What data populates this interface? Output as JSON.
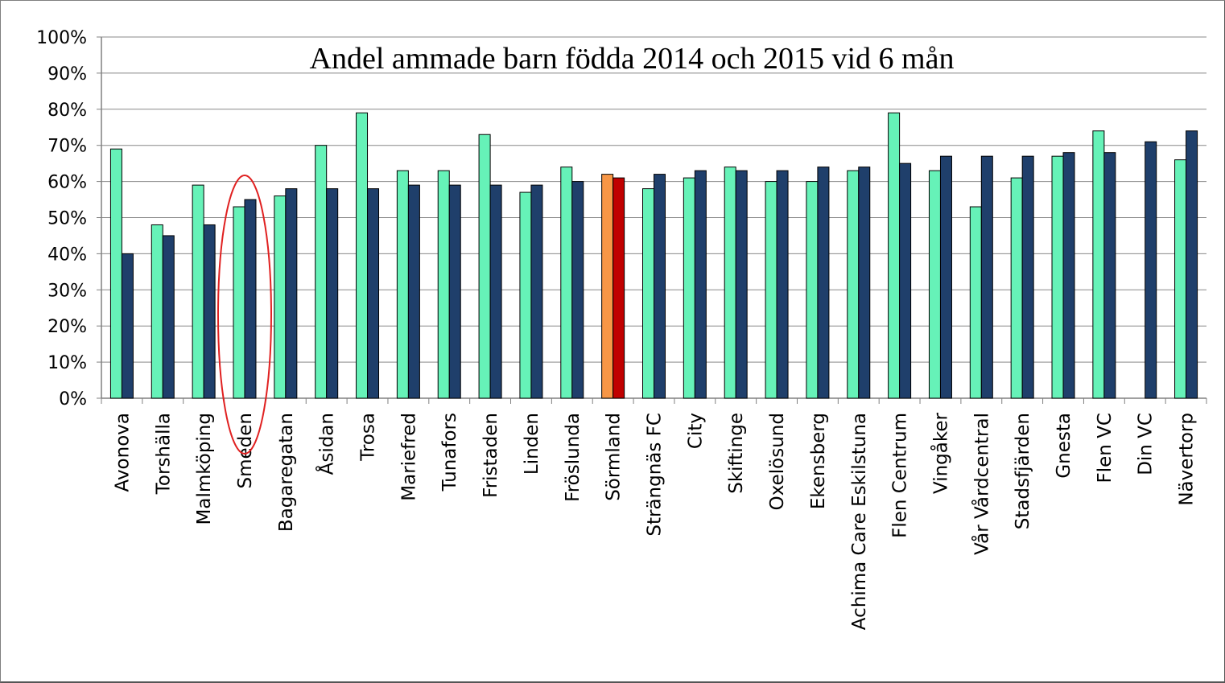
{
  "chart_data": {
    "type": "bar",
    "title": "Andel ammade barn födda 2014 och 2015 vid 6 mån",
    "xlabel": "",
    "ylabel": "",
    "ylim": [
      0,
      1
    ],
    "y_ticks": [
      "0%",
      "10%",
      "20%",
      "30%",
      "40%",
      "50%",
      "60%",
      "70%",
      "80%",
      "90%",
      "100%"
    ],
    "grid": true,
    "legend": "none",
    "categories": [
      "Avonova",
      "Torshälla",
      "Malmköping",
      "Smeden",
      "Bagaregatan",
      "Åsidan",
      "Trosa",
      "Mariefred",
      "Tunafors",
      "Fristaden",
      "Linden",
      "Fröslunda",
      "Sörmland",
      "Strängnäs FC",
      "City",
      "Skiftinge",
      "Oxelösund",
      "Ekensberg",
      "Achima Care Eskilstuna",
      "Flen Centrum",
      "Vingåker",
      "Vår Vårdcentral",
      "Stadsfjärden",
      "Gnesta",
      "Flen VC",
      "Din VC",
      "Nävertorp"
    ],
    "series": [
      {
        "values": [
          0.69,
          0.48,
          0.59,
          0.53,
          0.56,
          0.7,
          0.79,
          0.63,
          0.63,
          0.73,
          0.57,
          0.64,
          0.62,
          0.58,
          0.61,
          0.64,
          0.6,
          0.6,
          0.63,
          0.79,
          0.63,
          0.53,
          0.61,
          0.67,
          0.74,
          null,
          0.66
        ]
      },
      {
        "values": [
          0.4,
          0.45,
          0.48,
          0.55,
          0.58,
          0.58,
          0.58,
          0.59,
          0.59,
          0.59,
          0.59,
          0.6,
          0.61,
          0.62,
          0.63,
          0.63,
          0.63,
          0.64,
          0.64,
          0.65,
          0.67,
          0.67,
          0.67,
          0.68,
          0.68,
          0.71,
          0.74
        ]
      }
    ],
    "colors": {
      "series1": "#66f2b8",
      "series2": "#1f3f6b",
      "highlight1": "#f79646",
      "highlight2": "#c00000",
      "highlight_ellipse": "#e02020",
      "gridline": "#888888",
      "axis": "#808080"
    },
    "highlighted_category": "Sörmland",
    "circled_category": "Smeden"
  }
}
